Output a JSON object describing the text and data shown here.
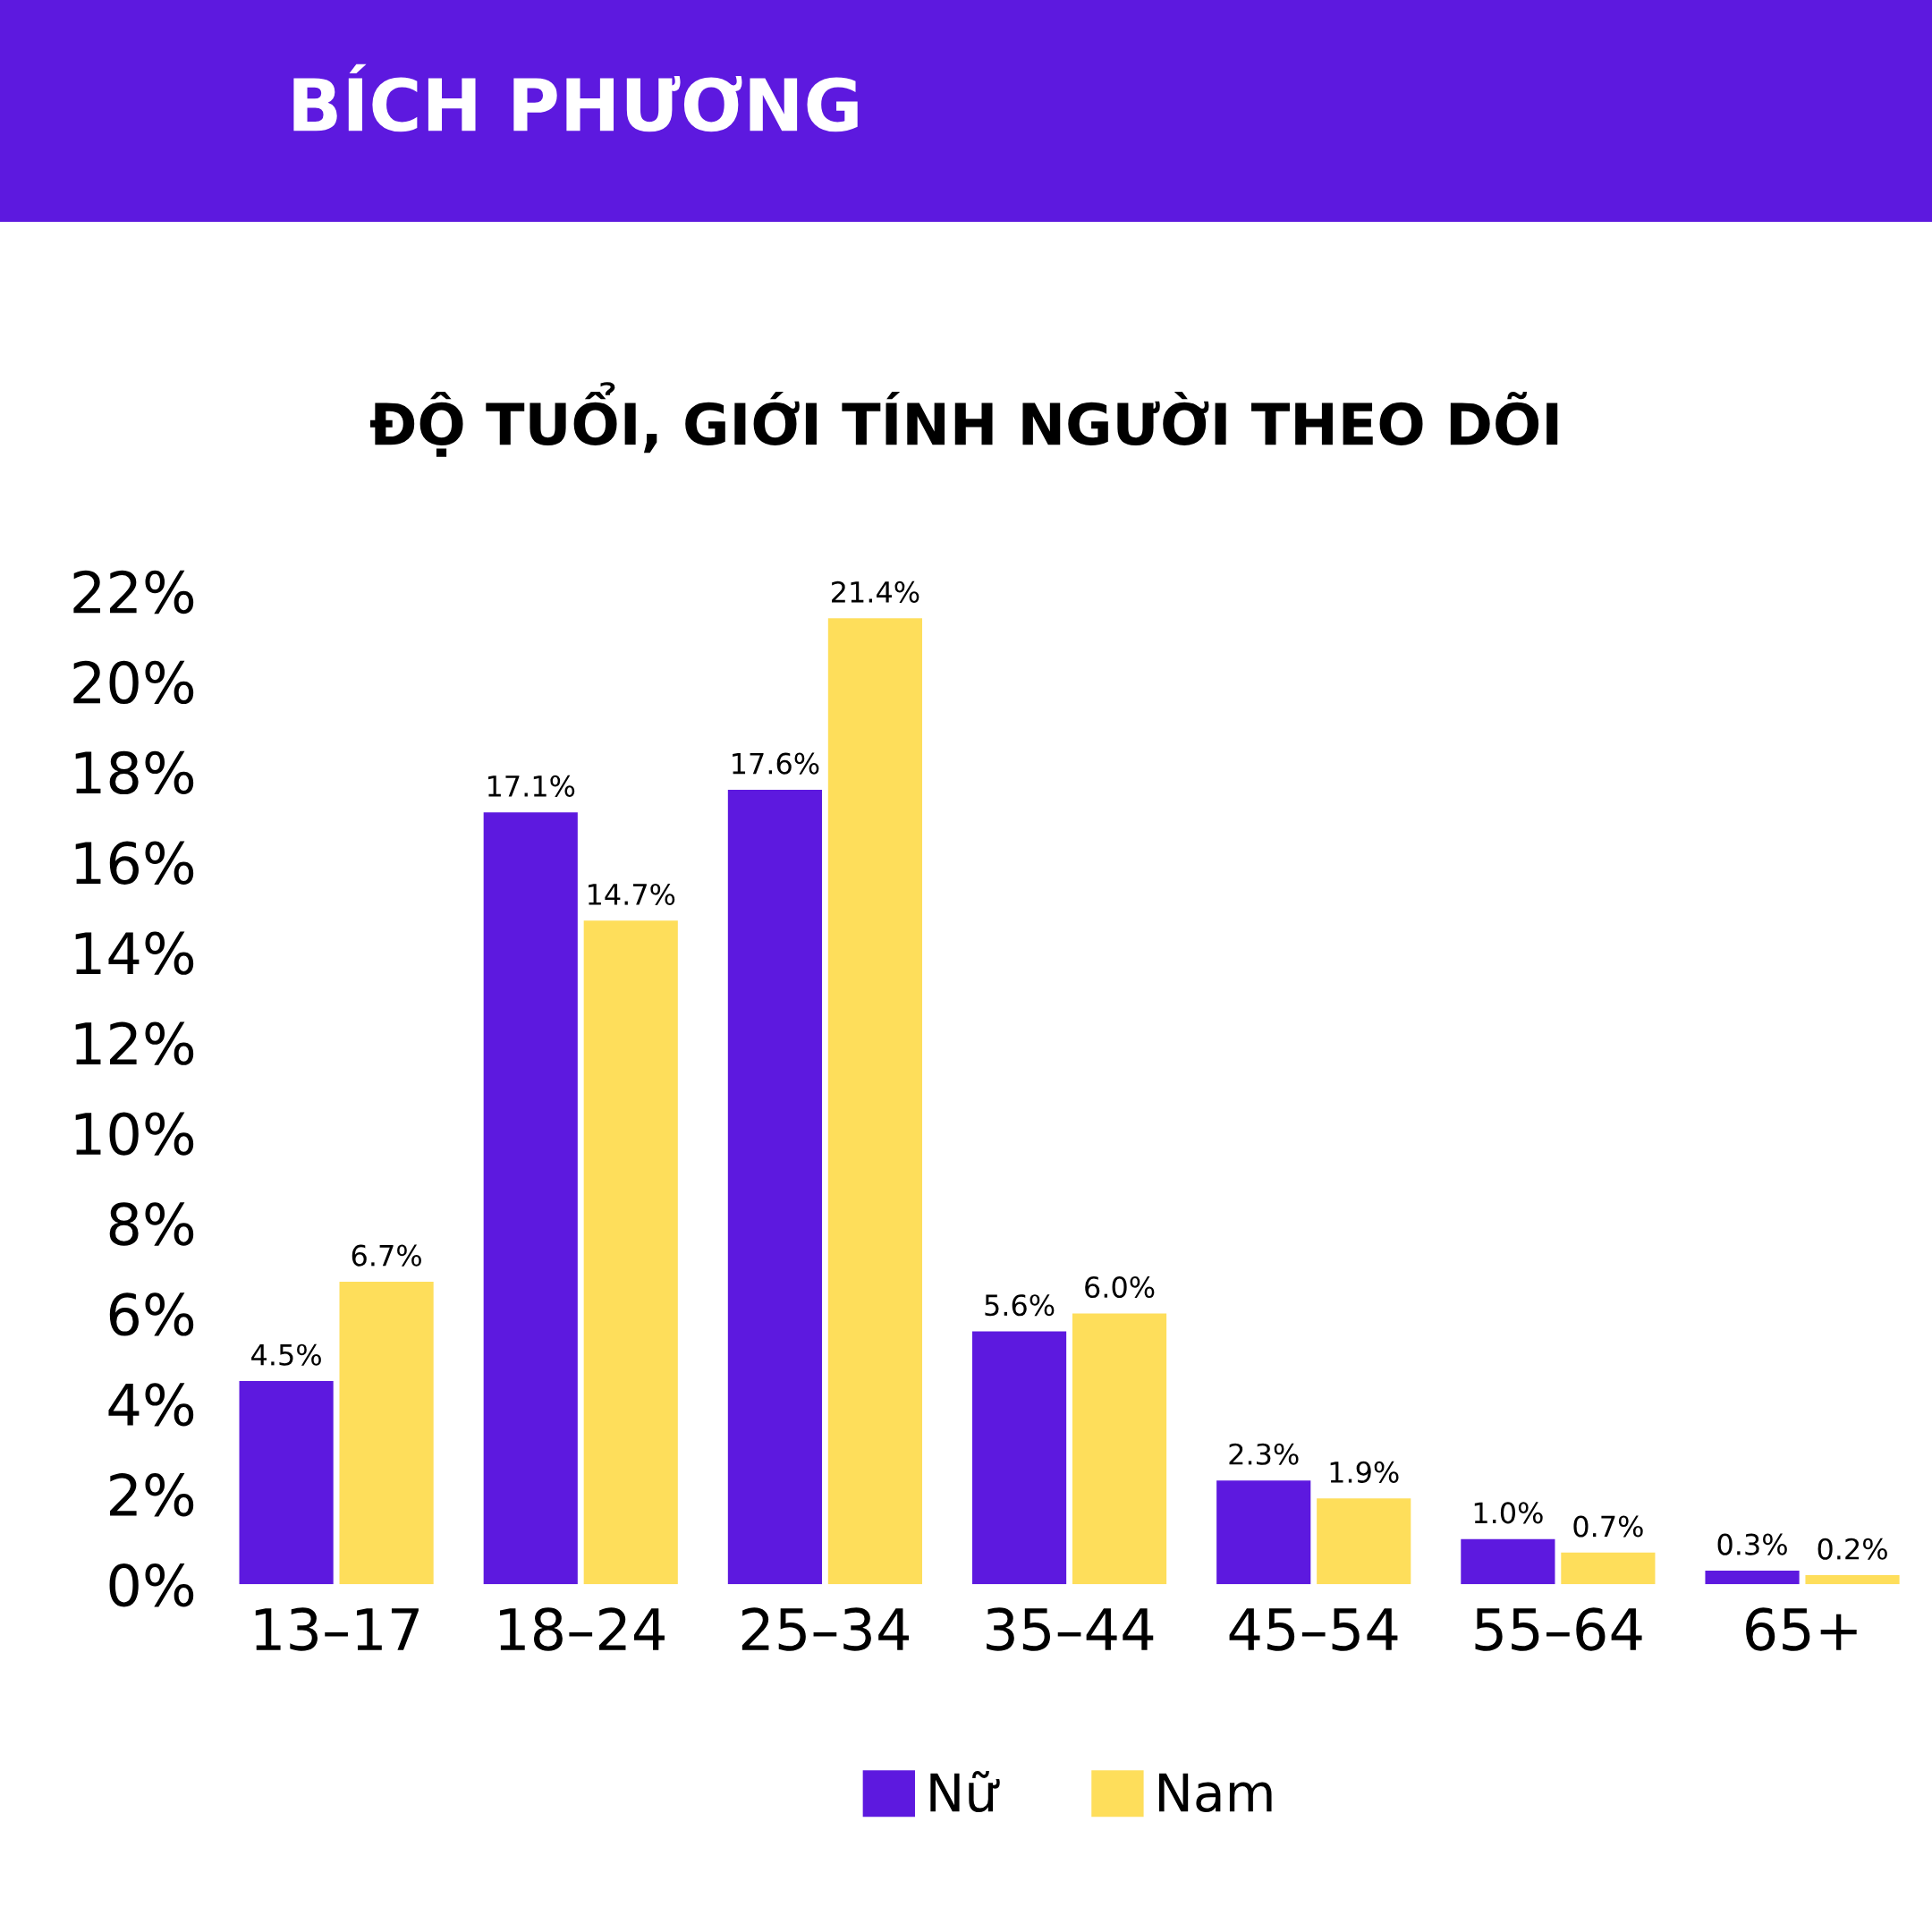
{
  "chart_data": {
    "type": "bar",
    "title": "BÍCH PHƯƠNG",
    "subtitle": "ĐỘ TUỔI, GIỚI TÍNH NGƯỜI THEO DÕI",
    "categories": [
      "13–17",
      "18–24",
      "25–34",
      "35–44",
      "45–54",
      "55–64",
      "65+"
    ],
    "series": [
      {
        "name": "Nữ",
        "color": "#5d19df",
        "values": [
          4.5,
          17.1,
          17.6,
          5.6,
          2.3,
          1.0,
          0.3
        ],
        "value_labels": [
          "4.5%",
          "17.1%",
          "17.6%",
          "5.6%",
          "2.3%",
          "1.0%",
          "0.3%"
        ]
      },
      {
        "name": "Nam",
        "color": "#fede5b",
        "values": [
          6.7,
          14.7,
          21.4,
          6.0,
          1.9,
          0.7,
          0.2
        ],
        "value_labels": [
          "6.7%",
          "14.7%",
          "21.4%",
          "6.0%",
          "1.9%",
          "0.7%",
          "0.2%"
        ]
      }
    ],
    "ylim": [
      0,
      22
    ],
    "yticks": [
      {
        "value": 0,
        "label": "0%"
      },
      {
        "value": 2,
        "label": "2%"
      },
      {
        "value": 4,
        "label": "4%"
      },
      {
        "value": 6,
        "label": "6%"
      },
      {
        "value": 8,
        "label": "8%"
      },
      {
        "value": 10,
        "label": "10%"
      },
      {
        "value": 12,
        "label": "12%"
      },
      {
        "value": 14,
        "label": "14%"
      },
      {
        "value": 16,
        "label": "16%"
      },
      {
        "value": 18,
        "label": "18%"
      },
      {
        "value": 20,
        "label": "20%"
      },
      {
        "value": 22,
        "label": "22%"
      }
    ],
    "grid": false,
    "legend": "bottom"
  }
}
